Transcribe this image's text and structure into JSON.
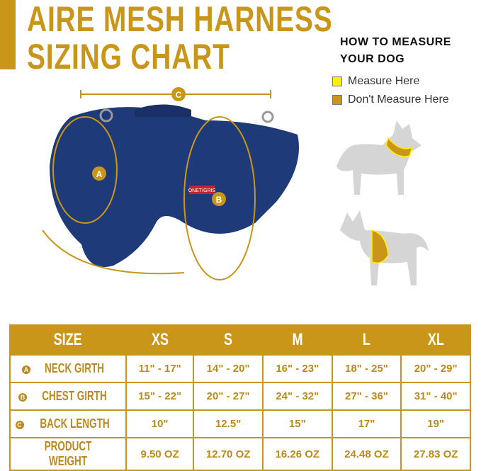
{
  "title": {
    "line1": "AIRE MESH HARNESS",
    "line2": "SIZING CHART"
  },
  "howto": {
    "line1": "HOW TO MEASURE",
    "line2": "YOUR DOG"
  },
  "legend": [
    {
      "label": "Measure Here",
      "color": "#ffef00"
    },
    {
      "label": "Don't Measure Here",
      "color": "#c9961a"
    }
  ],
  "markers": {
    "a": "A",
    "b": "B",
    "c": "C"
  },
  "brand_tag": "ONETIGRIS",
  "table": {
    "headers": [
      "SIZE",
      "XS",
      "S",
      "M",
      "L",
      "XL"
    ],
    "rows": [
      {
        "badge": "A",
        "label": "NECK GIRTH",
        "values": [
          "11\" - 17\"",
          "14\" - 20\"",
          "16\" - 23\"",
          "18\" - 25\"",
          "20\" - 29\""
        ]
      },
      {
        "badge": "B",
        "label": "CHEST GIRTH",
        "values": [
          "15\" - 22\"",
          "20\" - 27\"",
          "24\" - 32\"",
          "27\" - 36\"",
          "31\" - 40\""
        ]
      },
      {
        "badge": "C",
        "label": "BACK LENGTH",
        "values": [
          "10\"",
          "12.5\"",
          "15\"",
          "17\"",
          "19\""
        ]
      },
      {
        "badge": "",
        "label": "PRODUCT WEIGHT",
        "values": [
          "9.50 OZ",
          "12.70 OZ",
          "16.26 OZ",
          "24.48 OZ",
          "27.83 OZ"
        ]
      }
    ]
  }
}
